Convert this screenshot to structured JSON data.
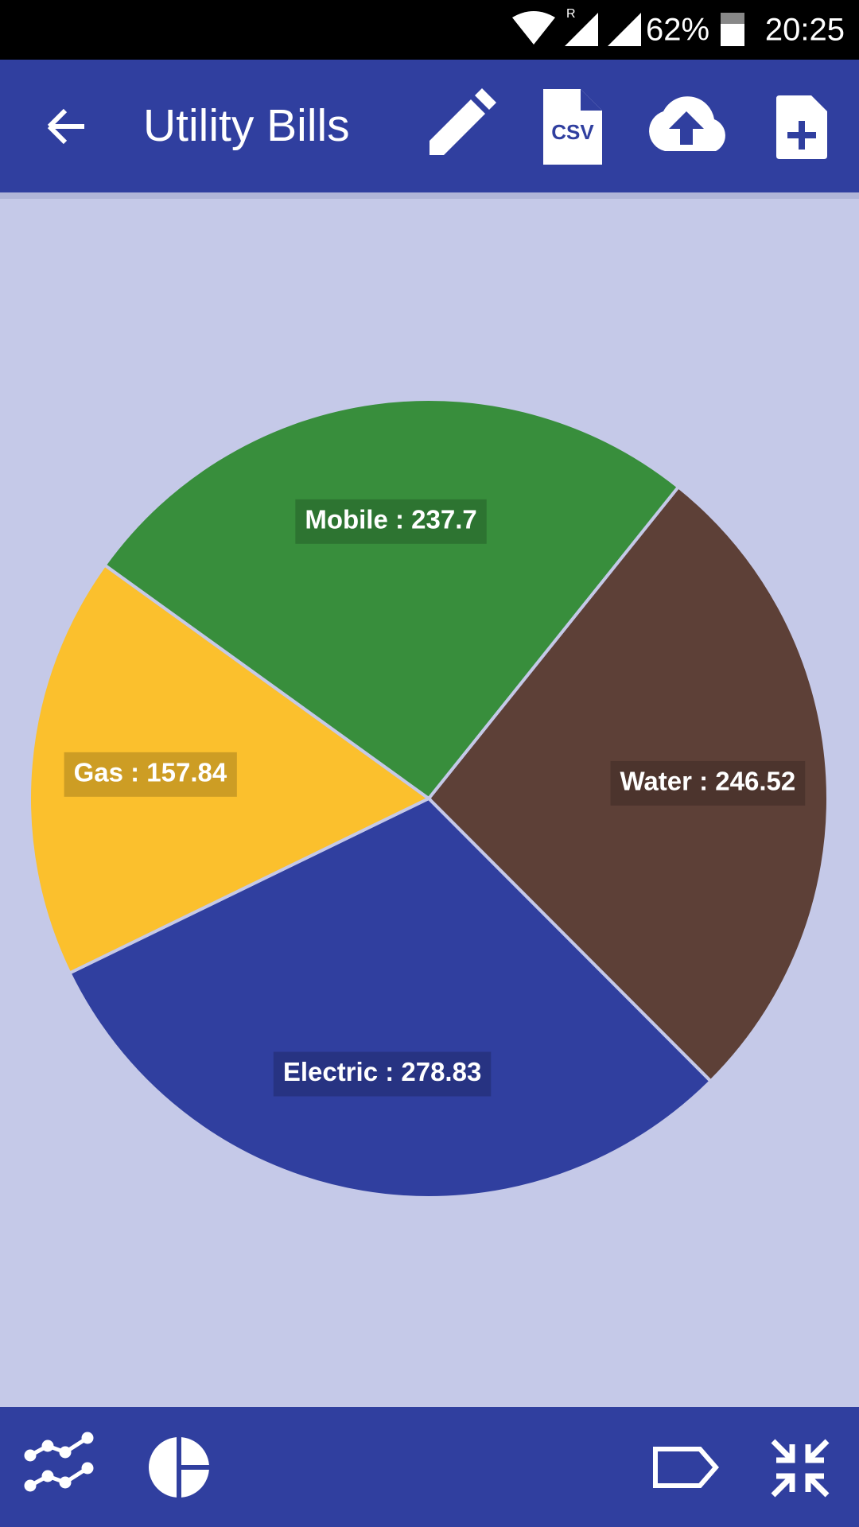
{
  "status_bar": {
    "roaming": "R",
    "battery": "62%",
    "time": "20:25"
  },
  "app_bar": {
    "title": "Utility Bills",
    "csv_icon": "CSV"
  },
  "chart_data": {
    "type": "pie",
    "values": [
      246.52,
      278.83,
      157.84,
      237.7
    ],
    "value_labels": [
      "Water : 246.52",
      "Electric : 278.83",
      "Gas : 157.84",
      "Mobile : 237.7"
    ],
    "colors": [
      "#5d4037",
      "#303f9f",
      "#fbc02d",
      "#388e3c"
    ]
  }
}
